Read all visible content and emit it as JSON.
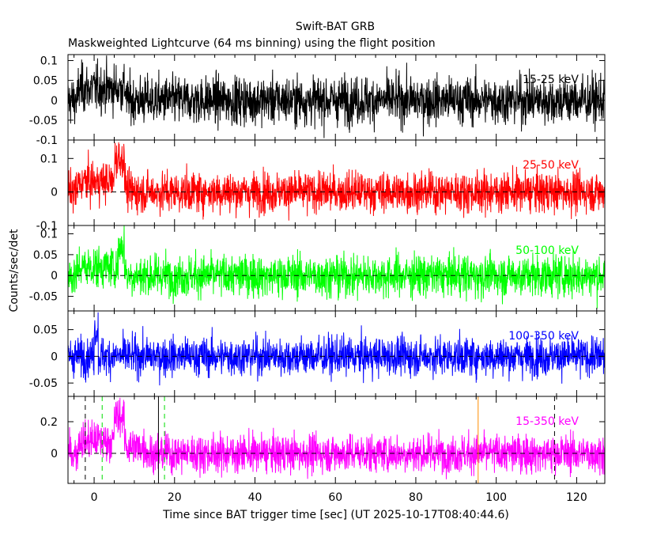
{
  "title": "Swift-BAT GRB",
  "subtitle": "Maskweighted Lightcurve (64 ms binning) using the flight position",
  "chart_data": {
    "type": "line",
    "title": "Swift-BAT GRB",
    "subtitle": "Maskweighted Lightcurve (64 ms binning) using the flight position",
    "xlabel": "Time since BAT trigger time [sec] (UT 2025-10-17T08:40:44.6)",
    "ylabel": "Counts/sec/det",
    "xlim": [
      -6.5,
      127
    ],
    "x_ticks": [
      0,
      20,
      40,
      60,
      80,
      100,
      120
    ],
    "bin_size_sec": 0.064,
    "grid": false,
    "panels": [
      {
        "name": "15-25 keV",
        "color": "#000000",
        "ylim": [
          -0.1,
          0.115
        ],
        "y_ticks": [
          -0.1,
          -0.05,
          0,
          0.05,
          0.1
        ],
        "y_tick_labels": [
          "-0.1",
          "-0.05",
          "0",
          "0.05",
          "0.1"
        ],
        "zero_line": false,
        "noise_rms": 0.03,
        "features": [
          {
            "x": [
              -4,
              8
            ],
            "y": 0.03
          }
        ]
      },
      {
        "name": "25-50 keV",
        "color": "#ff0000",
        "ylim": [
          -0.1,
          0.155
        ],
        "y_ticks": [
          -0.1,
          0,
          0.1
        ],
        "y_tick_labels": [
          "-0.1",
          "0",
          "0.1"
        ],
        "zero_line": true,
        "noise_rms": 0.03,
        "features": [
          {
            "x": [
              -4,
              8
            ],
            "y": 0.03
          },
          {
            "x": [
              5,
              7.5
            ],
            "y": 0.07
          }
        ]
      },
      {
        "name": "50-100 keV",
        "color": "#00ff00",
        "ylim": [
          -0.085,
          0.12
        ],
        "y_ticks": [
          -0.05,
          0,
          0.05,
          0.1
        ],
        "y_tick_labels": [
          "-0.05",
          "0",
          "0.05",
          "0.1"
        ],
        "zero_line": true,
        "noise_rms": 0.025,
        "features": [
          {
            "x": [
              -4,
              8
            ],
            "y": 0.02
          },
          {
            "x": [
              6,
              7.5
            ],
            "y": 0.05
          }
        ]
      },
      {
        "name": "100-350 keV",
        "color": "#0000ff",
        "ylim": [
          -0.075,
          0.085
        ],
        "y_ticks": [
          -0.05,
          0,
          0.05
        ],
        "y_tick_labels": [
          "-0.05",
          "0",
          "0.05"
        ],
        "zero_line": true,
        "noise_rms": 0.018,
        "features": [
          {
            "x": [
              0,
              1
            ],
            "y": 0.05
          }
        ]
      },
      {
        "name": "15-350 keV",
        "color": "#ff00ff",
        "ylim": [
          -0.19,
          0.36
        ],
        "y_ticks": [
          0,
          0.2
        ],
        "y_tick_labels": [
          "0",
          "0.2"
        ],
        "zero_line": true,
        "noise_rms": 0.06,
        "features": [
          {
            "x": [
              -4,
              8
            ],
            "y": 0.08
          },
          {
            "x": [
              5,
              7.5
            ],
            "y": 0.15
          },
          {
            "x": [
              8,
              13
            ],
            "y": 0.04
          }
        ],
        "markers": [
          {
            "x": -2.2,
            "style": "dashed",
            "color": "#000000"
          },
          {
            "x": 2.0,
            "style": "dashed",
            "color": "#00dd00"
          },
          {
            "x": 16.0,
            "style": "solid",
            "color": "#000000"
          },
          {
            "x": 17.5,
            "style": "dashed",
            "color": "#00dd00"
          },
          {
            "x": 95.5,
            "style": "solid",
            "color": "#ff8c00"
          },
          {
            "x": 114.5,
            "style": "dashed",
            "color": "#000000"
          }
        ]
      }
    ]
  }
}
